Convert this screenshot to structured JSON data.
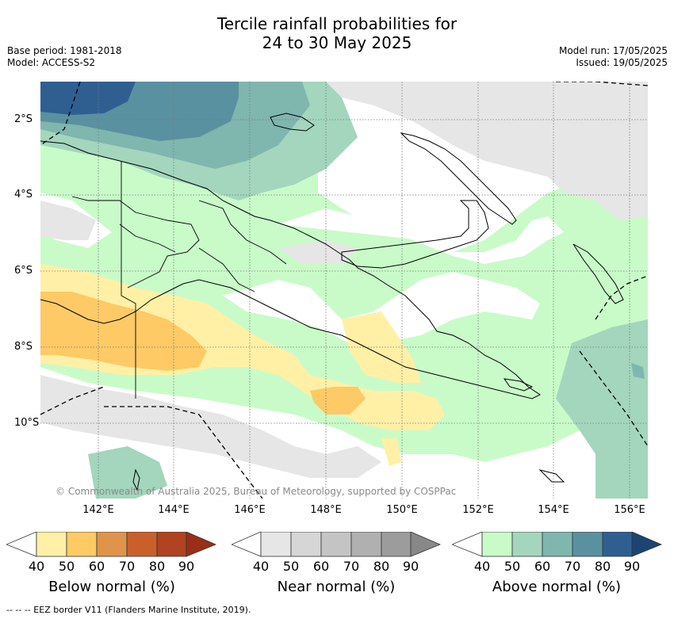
{
  "title": {
    "line1": "Tercile rainfall probabilities for",
    "line2": "24 to 30 May 2025"
  },
  "meta_left": {
    "base_period": "Base period: 1981-2018",
    "model": "Model: ACCESS-S2"
  },
  "meta_right": {
    "model_run": "Model run: 17/05/2025",
    "issued": "Issued: 19/05/2025"
  },
  "axes": {
    "lat_labels": [
      "2°S",
      "4°S",
      "6°S",
      "8°S",
      "10°S"
    ],
    "lon_labels": [
      "142°E",
      "144°E",
      "146°E",
      "148°E",
      "150°E",
      "152°E",
      "154°E",
      "156°E"
    ]
  },
  "copyright": "© Commonwealth of Australia 2025, Bureau of Meteorology, supported by COSPPac",
  "colorbars": [
    {
      "title": "Below normal (%)",
      "ticks": [
        "40",
        "50",
        "60",
        "70",
        "80",
        "90"
      ],
      "colors": [
        "#fff0a6",
        "#fdca66",
        "#e0944a",
        "#c9602c",
        "#b04322",
        "#9a2e17"
      ]
    },
    {
      "title": "Near normal (%)",
      "ticks": [
        "40",
        "50",
        "60",
        "70",
        "80",
        "90"
      ],
      "colors": [
        "#e6e6e6",
        "#d6d6d6",
        "#c4c4c4",
        "#b0b0b0",
        "#9c9c9c",
        "#888888"
      ]
    },
    {
      "title": "Above normal (%)",
      "ticks": [
        "40",
        "50",
        "60",
        "70",
        "80",
        "90"
      ],
      "colors": [
        "#c9fbc9",
        "#a3d6bd",
        "#7fb6ae",
        "#5a91a0",
        "#2f5f91",
        "#1b4473"
      ]
    }
  ],
  "footer": "--  --  -- EEZ border V11 (Flanders Marine Institute, 2019)."
}
